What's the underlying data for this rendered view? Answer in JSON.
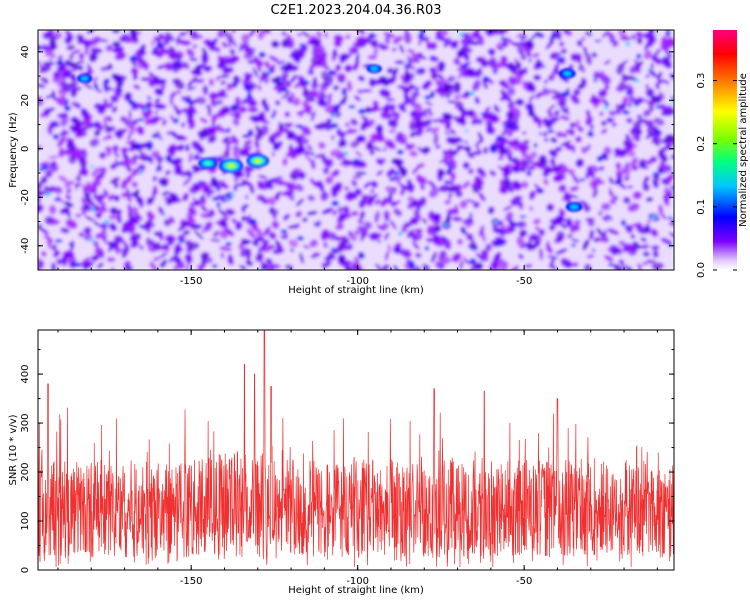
{
  "title": "C2E1.2023.204.04.36.R03",
  "chart_data": [
    {
      "type": "heatmap",
      "xlabel": "Height of straight line (km)",
      "ylabel": "Frequency (Hz)",
      "xlim": [
        -196,
        -5
      ],
      "ylim": [
        -50,
        49
      ],
      "x_ticks": [
        -150,
        -100,
        -50
      ],
      "y_ticks": [
        -40,
        -20,
        0,
        20,
        40
      ],
      "grid": false,
      "colorbar": {
        "label": "Normalized spectral amplitude",
        "range": [
          0,
          0.38
        ],
        "ticks": [
          0.0,
          0.1,
          0.2,
          0.3
        ],
        "colors": [
          "#ffffff",
          "#7b00ff",
          "#0000ff",
          "#00c8ff",
          "#00ff80",
          "#80ff00",
          "#ffff00",
          "#ff8000",
          "#ff0000",
          "#ff0080"
        ]
      },
      "background_level": 0.04,
      "hotspots": [
        {
          "x": -145,
          "y": -6,
          "value": 0.15
        },
        {
          "x": -138,
          "y": -7,
          "value": 0.22
        },
        {
          "x": -130,
          "y": -5,
          "value": 0.2
        },
        {
          "x": -37,
          "y": 31,
          "value": 0.12
        },
        {
          "x": -35,
          "y": -24,
          "value": 0.12
        },
        {
          "x": -182,
          "y": 29,
          "value": 0.1
        },
        {
          "x": -95,
          "y": 33,
          "value": 0.1
        }
      ]
    },
    {
      "type": "line",
      "xlabel": "Height of straight line (km)",
      "ylabel": "SNR (10 * v/v)",
      "xlim": [
        -196,
        -5
      ],
      "ylim": [
        0,
        490
      ],
      "x_ticks": [
        -150,
        -100,
        -50
      ],
      "y_ticks": [
        0,
        100,
        200,
        300,
        400
      ],
      "grid": false,
      "line_color": "#f03030",
      "baseline": 125,
      "spread": 100,
      "peak": {
        "x": -128,
        "y": 490
      },
      "notable_peaks": [
        {
          "x": -193,
          "y": 380
        },
        {
          "x": -134,
          "y": 420
        },
        {
          "x": -131,
          "y": 400
        },
        {
          "x": -126,
          "y": 375
        },
        {
          "x": -77,
          "y": 370
        },
        {
          "x": -62,
          "y": 365
        },
        {
          "x": -40,
          "y": 350
        }
      ]
    }
  ]
}
